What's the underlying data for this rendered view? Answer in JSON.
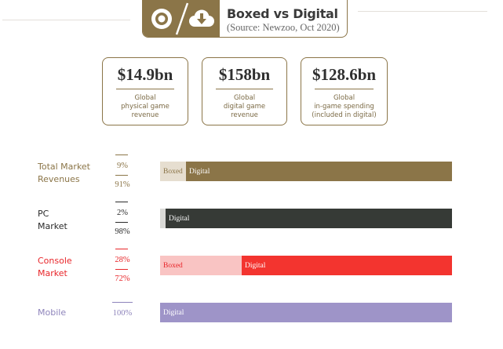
{
  "header": {
    "title": "Boxed vs Digital",
    "subtitle": "(Source: Newzoo, Oct 2020)",
    "icons": [
      "disc-icon",
      "cloud-download-icon"
    ],
    "color": "#8b7548"
  },
  "stats": [
    {
      "value": "$14.9bn",
      "lines": [
        "Global",
        "physical game",
        "revenue"
      ]
    },
    {
      "value": "$158bn",
      "lines": [
        "Global",
        "digital game",
        "revenue"
      ]
    },
    {
      "value": "$128.6bn",
      "lines": [
        "Global",
        "in-game spending",
        "(included in digital)"
      ]
    }
  ],
  "chart_data": {
    "type": "bar",
    "orientation": "horizontal",
    "stacked": true,
    "categories": [
      "Total Market Revenues",
      "PC Market",
      "Console Market",
      "Mobile"
    ],
    "series": [
      {
        "name": "Boxed",
        "values": [
          9,
          2,
          28,
          0
        ]
      },
      {
        "name": "Digital",
        "values": [
          91,
          98,
          72,
          100
        ]
      }
    ],
    "rows": [
      {
        "label_lines": [
          "Total Market",
          "Revenues"
        ],
        "label_color": "#8b7548",
        "boxed_pct": "9%",
        "digital_pct": "91%",
        "boxed": 9,
        "digital": 91,
        "boxed_label": "Boxed",
        "digital_label": "Digital",
        "boxed_color": "#e6ded0",
        "digital_color": "#8b7548",
        "boxed_text_color": "#8b7548",
        "digital_text_color": "#ffffff",
        "accent": "#8b7548"
      },
      {
        "label_lines": [
          "PC",
          "Market"
        ],
        "label_color": "#2a2a2a",
        "boxed_pct": "2%",
        "digital_pct": "98%",
        "boxed": 2,
        "digital": 98,
        "boxed_label": "",
        "digital_label": "Digital",
        "boxed_color": "#d9d9d6",
        "digital_color": "#363a36",
        "boxed_text_color": "#363a36",
        "digital_text_color": "#ffffff",
        "accent": "#2a2a2a"
      },
      {
        "label_lines": [
          "Console",
          "Market"
        ],
        "label_color": "#e8262a",
        "boxed_pct": "28%",
        "digital_pct": "72%",
        "boxed": 28,
        "digital": 72,
        "boxed_label": "Boxed",
        "digital_label": "Digital",
        "boxed_color": "#f9c4c3",
        "digital_color": "#f3342f",
        "boxed_text_color": "#e8262a",
        "digital_text_color": "#ffffff",
        "accent": "#e8262a"
      },
      {
        "label_lines": [
          "Mobile"
        ],
        "label_color": "#8e84bb",
        "boxed_pct": "",
        "digital_pct": "100%",
        "boxed": 0,
        "digital": 100,
        "boxed_label": "",
        "digital_label": "Digital",
        "boxed_color": "#d8d4ea",
        "digital_color": "#9e94c8",
        "boxed_text_color": "#8e84bb",
        "digital_text_color": "#ffffff",
        "accent": "#8e84bb"
      }
    ]
  }
}
